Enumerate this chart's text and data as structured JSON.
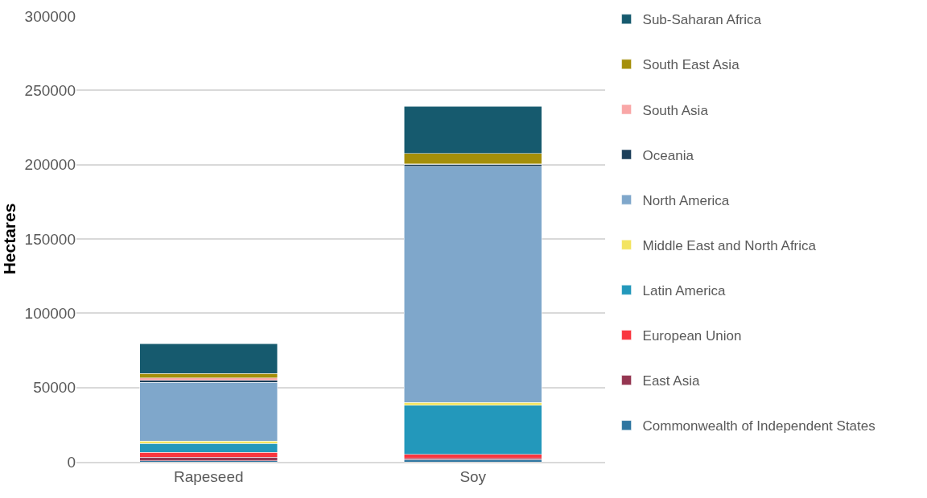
{
  "chart_data": {
    "type": "bar",
    "stacked": true,
    "ylabel": "Hectares",
    "categories": [
      "Rapeseed",
      "Soy"
    ],
    "ylim": [
      0,
      300000
    ],
    "yticks": [
      0,
      50000,
      100000,
      150000,
      200000,
      250000,
      300000
    ],
    "grid": "y",
    "legend": "right",
    "series": [
      {
        "name": "Commonwealth of Independent States",
        "color": "#2e75a0",
        "values": [
          700,
          1500
        ]
      },
      {
        "name": "East Asia",
        "color": "#953651",
        "values": [
          2400,
          900
        ]
      },
      {
        "name": "European Union",
        "color": "#f9363f",
        "values": [
          3300,
          2700
        ]
      },
      {
        "name": "Latin America",
        "color": "#2398bb",
        "values": [
          6000,
          33000
        ]
      },
      {
        "name": "Middle East and North Africa",
        "color": "#f3e461",
        "values": [
          1500,
          1800
        ]
      },
      {
        "name": "North America",
        "color": "#7fa7cb",
        "values": [
          39700,
          158900
        ]
      },
      {
        "name": "Oceania",
        "color": "#1c3f5a",
        "values": [
          1300,
          1400
        ]
      },
      {
        "name": "South Asia",
        "color": "#f9a7a7",
        "values": [
          1500,
          300
        ]
      },
      {
        "name": "South East Asia",
        "color": "#a58f0a",
        "values": [
          2900,
          7100
        ]
      },
      {
        "name": "Sub-Saharan Africa",
        "color": "#165a6e",
        "values": [
          20300,
          31500
        ]
      }
    ]
  }
}
